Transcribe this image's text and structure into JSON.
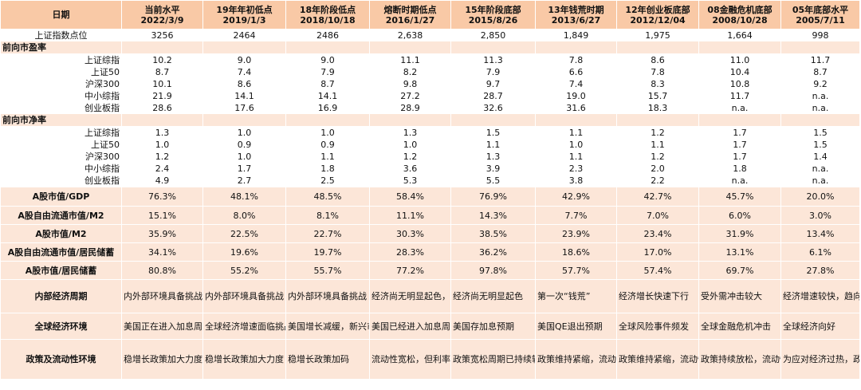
{
  "header": {
    "label": "日期",
    "columns": [
      {
        "name": "当前水平",
        "date": "2022/3/9"
      },
      {
        "name": "19年年初低点",
        "date": "2019/1/3"
      },
      {
        "name": "18年阶段低点",
        "date": "2018/10/18"
      },
      {
        "name": "熔断时期低点",
        "date": "2016/1/27"
      },
      {
        "name": "15年阶段底部",
        "date": "2015/8/26"
      },
      {
        "name": "13年钱荒时期",
        "date": "2013/6/27"
      },
      {
        "name": "12年创业板底部",
        "date": "2012/12/04"
      },
      {
        "name": "08金融危机底部",
        "date": "2008/10/28"
      },
      {
        "name": "05年底部水平",
        "date": "2005/7/11"
      }
    ]
  },
  "rows": [
    {
      "label": "上证指数点位",
      "values": [
        "3256",
        "2464",
        "2486",
        "2,638",
        "2,850",
        "1,849",
        "1,975",
        "1,664",
        "998"
      ]
    },
    {
      "label": "前向市盈率",
      "values": [
        "",
        "",
        "",
        "",
        "",
        "",
        "",
        "",
        ""
      ]
    },
    {
      "label": "上证综指",
      "values": [
        "10.2",
        "9.0",
        "9.0",
        "11.1",
        "11.3",
        "7.8",
        "8.6",
        "11.0",
        "11.7"
      ]
    },
    {
      "label": "上证50",
      "values": [
        "8.7",
        "7.4",
        "7.9",
        "8.2",
        "7.9",
        "6.6",
        "7.8",
        "10.4",
        "8.7"
      ]
    },
    {
      "label": "沪深300",
      "values": [
        "10.1",
        "8.6",
        "8.7",
        "9.8",
        "9.7",
        "7.4",
        "8.3",
        "10.8",
        "9.2"
      ]
    },
    {
      "label": "中小综指",
      "values": [
        "21.9",
        "14.1",
        "14.1",
        "27.2",
        "28.7",
        "19.0",
        "15.7",
        "11.7",
        "n.a."
      ]
    },
    {
      "label": "创业板指",
      "values": [
        "28.6",
        "17.6",
        "16.9",
        "28.9",
        "32.6",
        "31.6",
        "18.3",
        "n.a.",
        "n.a."
      ]
    },
    {
      "label": "前向市净率",
      "values": [
        "",
        "",
        "",
        "",
        "",
        "",
        "",
        "",
        ""
      ]
    },
    {
      "label": "上证综指",
      "values": [
        "1.3",
        "1.0",
        "1.0",
        "1.3",
        "1.5",
        "1.1",
        "1.2",
        "1.7",
        "1.5"
      ]
    },
    {
      "label": "上证50",
      "values": [
        "1.0",
        "0.9",
        "0.9",
        "1.0",
        "1.1",
        "1.0",
        "1.1",
        "1.7",
        "1.5"
      ]
    },
    {
      "label": "沪深300",
      "values": [
        "1.2",
        "1.0",
        "1.1",
        "1.2",
        "1.3",
        "1.1",
        "1.2",
        "1.7",
        "1.4"
      ]
    },
    {
      "label": "中小综指",
      "values": [
        "2.4",
        "1.7",
        "1.8",
        "3.6",
        "3.9",
        "2.3",
        "2.0",
        "1.8",
        "n.a."
      ]
    },
    {
      "label": "创业板指",
      "values": [
        "4.9",
        "2.7",
        "2.5",
        "5.3",
        "5.5",
        "3.8",
        "2.2",
        "n.a.",
        "n.a."
      ]
    },
    {
      "label": "A股市值/GDP",
      "values": [
        "76.3%",
        "48.1%",
        "48.5%",
        "58.4%",
        "76.9%",
        "42.9%",
        "42.7%",
        "45.7%",
        "20.0%"
      ]
    },
    {
      "label": "A股自由流通市值/M2",
      "values": [
        "15.1%",
        "8.0%",
        "8.1%",
        "11.1%",
        "14.3%",
        "7.7%",
        "7.0%",
        "6.0%",
        "3.0%"
      ]
    },
    {
      "label": "A股市值/M2",
      "values": [
        "35.9%",
        "22.5%",
        "22.7%",
        "30.3%",
        "38.5%",
        "23.9%",
        "23.4%",
        "31.9%",
        "13.4%"
      ]
    },
    {
      "label": "A股自由流通市值/居民储蓄",
      "values": [
        "34.1%",
        "19.6%",
        "19.7%",
        "28.3%",
        "36.2%",
        "18.6%",
        "17.0%",
        "13.1%",
        "6.1%"
      ]
    },
    {
      "label": "A股市值/居民储蓄",
      "values": [
        "80.8%",
        "55.2%",
        "55.7%",
        "77.2%",
        "97.8%",
        "57.7%",
        "57.4%",
        "69.7%",
        "27.8%"
      ]
    },
    {
      "label": "内部经济周期",
      "values": [
        "内外部环境具备挑战",
        "内外部环境具备挑战",
        "内外部环境具备挑战",
        "经济尚无明显起色，人民币存贬值预期",
        "经济尚无明显起色",
        "第一次“钱荒”",
        "经济增长快速下行",
        "受外需冲击较大",
        "经济增速较快，趋向过热"
      ]
    },
    {
      "label": "全球经济环境",
      "values": [
        "美国正在进入加息周期",
        "全球经济增速面临挑战",
        "美国增长减缓，新兴市场动荡",
        "美国已经进入加息周期",
        "美国存加息预期",
        "美国QE退出预期",
        "全球风险事件频发",
        "全球金融危机冲击",
        "全球经济向好"
      ]
    },
    {
      "label": "政策及流动性环境",
      "values": [
        "稳增长政策加大力度",
        "稳增长政策加大力度",
        "稳增长政策加码",
        "流动性宽松，但利率继续下行空间有限",
        "政策宽松周期已持续较长时间，流动性较好",
        "政策维持紧缩，流动性紧张",
        "政策维持紧缩，流动性紧张",
        "政策持续放松，流动性向好",
        "为应对经济过热，政策逐步收紧"
      ]
    }
  ],
  "colors": {
    "header_fill": "#f9c9a6",
    "band_fill": "#fce6d8",
    "highlight_text": "#ee1111"
  }
}
